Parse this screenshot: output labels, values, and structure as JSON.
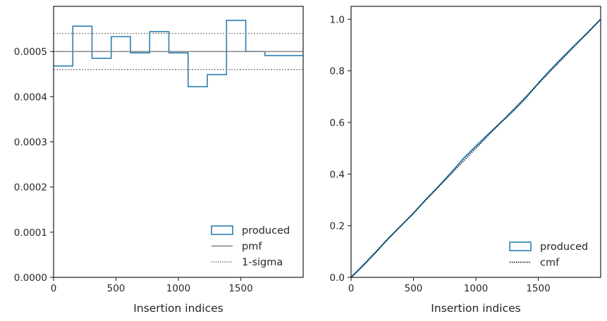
{
  "chart_data": [
    {
      "type": "step",
      "xlabel": "Insertion indices",
      "xlim": [
        0,
        2000
      ],
      "ylim": [
        0,
        0.0006
      ],
      "xticks": [
        0,
        500,
        1000,
        1500
      ],
      "xtick_labels": [
        "0",
        "500",
        "1000",
        "1500"
      ],
      "yticks": [
        0,
        0.0001,
        0.0002,
        0.0003,
        0.0004,
        0.0005
      ],
      "ytick_labels": [
        "0.0000",
        "0.0001",
        "0.0002",
        "0.0003",
        "0.0004",
        "0.0005"
      ],
      "legend_position": "bottom-right",
      "series": [
        {
          "name": "produced",
          "style": "step",
          "color": "#2a7fb0",
          "bin_edges": [
            0,
            154,
            308,
            462,
            616,
            770,
            924,
            1078,
            1232,
            1386,
            1540,
            1694,
            2000
          ],
          "values": [
            0.000468,
            0.000556,
            0.000485,
            0.000533,
            0.000497,
            0.000544,
            0.000497,
            0.000422,
            0.000449,
            0.000569,
            0.0005,
            0.000491
          ]
        },
        {
          "name": "pmf",
          "style": "solid",
          "color": "#808080",
          "y": 0.0005
        },
        {
          "name": "1-sigma",
          "style": "dotted",
          "color": "#808080",
          "y": [
            0.00046,
            0.00054
          ]
        }
      ]
    },
    {
      "type": "line",
      "xlabel": "Insertion indices",
      "xlim": [
        0,
        2000
      ],
      "ylim": [
        0,
        1.05
      ],
      "xticks": [
        0,
        500,
        1000,
        1500
      ],
      "xtick_labels": [
        "0",
        "500",
        "1000",
        "1500"
      ],
      "yticks": [
        0,
        0.2,
        0.4,
        0.6,
        0.8,
        1.0
      ],
      "ytick_labels": [
        "0.0",
        "0.2",
        "0.4",
        "0.6",
        "0.8",
        "1.0"
      ],
      "legend_position": "bottom-right",
      "series": [
        {
          "name": "produced",
          "style": "solid",
          "color": "#2a7fb0",
          "x": [
            0,
            100,
            200,
            300,
            400,
            500,
            600,
            700,
            800,
            900,
            1000,
            1100,
            1200,
            1300,
            1400,
            1500,
            1600,
            1700,
            1800,
            1900,
            2000
          ],
          "y": [
            0,
            0.047,
            0.098,
            0.152,
            0.2,
            0.248,
            0.302,
            0.352,
            0.405,
            0.46,
            0.508,
            0.555,
            0.6,
            0.645,
            0.695,
            0.752,
            0.805,
            0.855,
            0.903,
            0.95,
            1.0
          ]
        },
        {
          "name": "cmf",
          "style": "dotted",
          "color": "#000000",
          "x": [
            0,
            2000
          ],
          "y": [
            0,
            1.0
          ]
        }
      ]
    }
  ]
}
